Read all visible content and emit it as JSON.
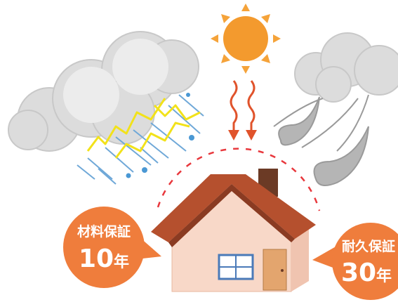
{
  "callouts": [
    {
      "label": "材料保証",
      "years": "10",
      "unit": "年"
    },
    {
      "label": "耐久保証",
      "years": "30",
      "unit": "年"
    }
  ]
}
